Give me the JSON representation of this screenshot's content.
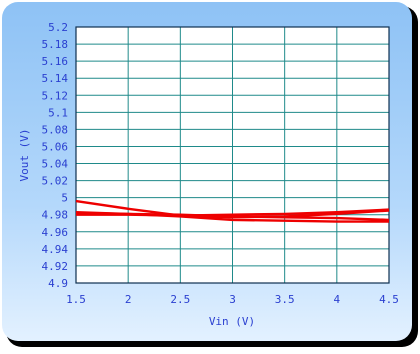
{
  "chart_data": {
    "type": "line",
    "title": "",
    "xlabel": "Vin (V)",
    "ylabel": "Vout (V)",
    "xlim": [
      1.5,
      4.5
    ],
    "ylim": [
      4.9,
      5.2
    ],
    "x_ticks": [
      "1.5",
      "2",
      "2.5",
      "3",
      "3.5",
      "4",
      "4.5"
    ],
    "y_ticks": [
      "4.9",
      "4.92",
      "4.94",
      "4.96",
      "4.98",
      "5",
      "5.02",
      "5.04",
      "5.06",
      "5.08",
      "5.1",
      "5.12",
      "5.14",
      "5.16",
      "5.18",
      "5.2"
    ],
    "grid": true,
    "legend": "none",
    "series": [
      {
        "x": [
          1.5,
          2.0,
          2.5,
          3.0,
          3.5,
          4.0,
          4.5
        ],
        "y": [
          4.996,
          4.987,
          4.979,
          4.977,
          4.978,
          4.981,
          4.985
        ]
      },
      {
        "x": [
          1.5,
          2.0,
          2.5,
          3.0,
          3.5,
          4.0,
          4.5
        ],
        "y": [
          4.983,
          4.981,
          4.978,
          4.974,
          4.973,
          4.972,
          4.972
        ]
      },
      {
        "x": [
          1.5,
          2.0,
          2.5,
          3.0,
          3.5,
          4.0,
          4.5
        ],
        "y": [
          4.98,
          4.98,
          4.979,
          4.98,
          4.981,
          4.983,
          4.986
        ]
      },
      {
        "x": [
          1.5,
          2.0,
          2.5,
          3.0,
          3.5,
          4.0,
          4.5
        ],
        "y": [
          4.982,
          4.981,
          4.98,
          4.978,
          4.977,
          4.976,
          4.974
        ]
      }
    ],
    "colors": {
      "line": "#ee0000",
      "grid": "#1f8a8a",
      "axis_text": "#2a3fd0",
      "panel": "#9ecbf7",
      "plot_bg": "#ffffff"
    }
  }
}
